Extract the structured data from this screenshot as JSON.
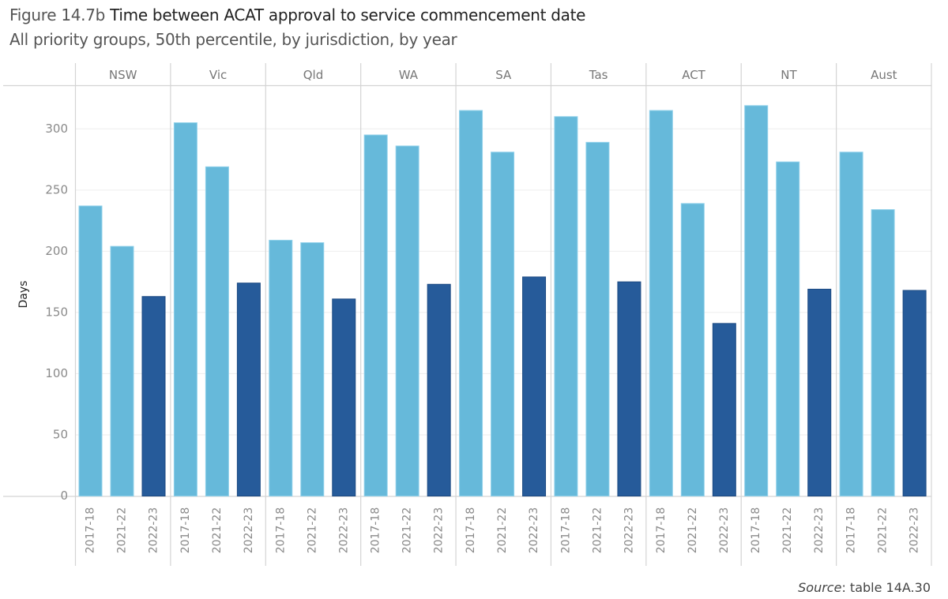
{
  "figure": {
    "number": "Figure 14.7b",
    "title": "Time between ACAT approval to service commencement date",
    "subtitle": "All priority groups, 50th percentile, by jurisdiction, by year",
    "source_label": "Source",
    "source_text": ": table 14A.30"
  },
  "colors": {
    "light": "#66B9DA",
    "light_border": "#8fd0ea",
    "dark": "#265B9A",
    "dark_border": "#1c4a82",
    "grid": "#eeeeee",
    "divider": "#d4d4d4"
  },
  "chart_data": {
    "type": "bar",
    "title": "Time between ACAT approval to service commencement date",
    "subtitle": "All priority groups, 50th percentile, by jurisdiction, by year",
    "xlabel": "",
    "ylabel": "Days",
    "ylim": [
      0,
      330
    ],
    "yticks": [
      0,
      50,
      100,
      150,
      200,
      250,
      300
    ],
    "grid": true,
    "legend": "none",
    "panels": [
      "NSW",
      "Vic",
      "Qld",
      "WA",
      "SA",
      "Tas",
      "ACT",
      "NT",
      "Aust"
    ],
    "categories": [
      "2017-18",
      "2021-22",
      "2022-23"
    ],
    "highlight_category": "2022-23",
    "series": [
      {
        "name": "NSW",
        "values": [
          237,
          204,
          163
        ]
      },
      {
        "name": "Vic",
        "values": [
          305,
          269,
          174
        ]
      },
      {
        "name": "Qld",
        "values": [
          209,
          207,
          161
        ]
      },
      {
        "name": "WA",
        "values": [
          295,
          286,
          173
        ]
      },
      {
        "name": "SA",
        "values": [
          315,
          281,
          179
        ]
      },
      {
        "name": "Tas",
        "values": [
          310,
          289,
          175
        ]
      },
      {
        "name": "ACT",
        "values": [
          315,
          239,
          141
        ]
      },
      {
        "name": "NT",
        "values": [
          319,
          273,
          169
        ]
      },
      {
        "name": "Aust",
        "values": [
          281,
          234,
          168
        ]
      }
    ],
    "source": "Source: table 14A.30"
  }
}
